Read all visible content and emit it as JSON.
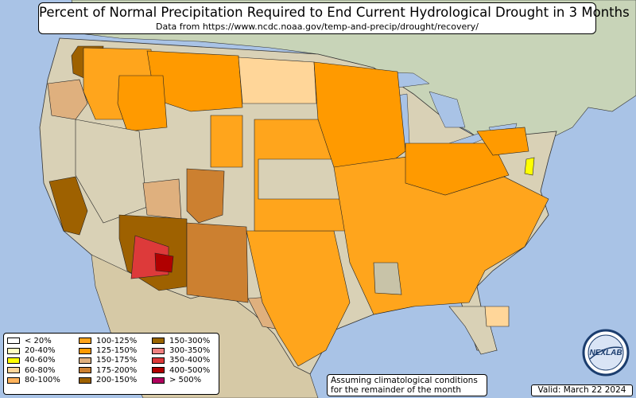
{
  "title": "Percent of Normal Precipitation Required to End Current Hydrological Drought in 3 Months",
  "subtitle": "Data from https://www.ncdc.noaa.gov/temp-and-precip/drought/recovery/",
  "note_line1": "Assuming climatological conditions",
  "note_line2": "for the remainder of the month",
  "valid": "Valid: March 22 2024",
  "logo_text": "NEXLAB",
  "legend": [
    {
      "label": "< 20%",
      "color": "#ffffff"
    },
    {
      "label": "20-40%",
      "color": "#ffffc4"
    },
    {
      "label": "40-60%",
      "color": "#ffff00"
    },
    {
      "label": "60-80%",
      "color": "#ffd699"
    },
    {
      "label": "80-100%",
      "color": "#ffb35c"
    },
    {
      "label": "100-125%",
      "color": "#ffa51c"
    },
    {
      "label": "125-150%",
      "color": "#ff9a00"
    },
    {
      "label": "150-175%",
      "color": "#dfb07e"
    },
    {
      "label": "175-200%",
      "color": "#cc8030"
    },
    {
      "label": "200-150%",
      "color": "#9e6100"
    },
    {
      "label": "150-300%",
      "color": "#9a6500"
    },
    {
      "label": "300-350%",
      "color": "#f08080"
    },
    {
      "label": "350-400%",
      "color": "#dd3a3a"
    },
    {
      "label": "400-500%",
      "color": "#b00000"
    },
    {
      "label": "> 500%",
      "color": "#b0005e"
    }
  ]
}
